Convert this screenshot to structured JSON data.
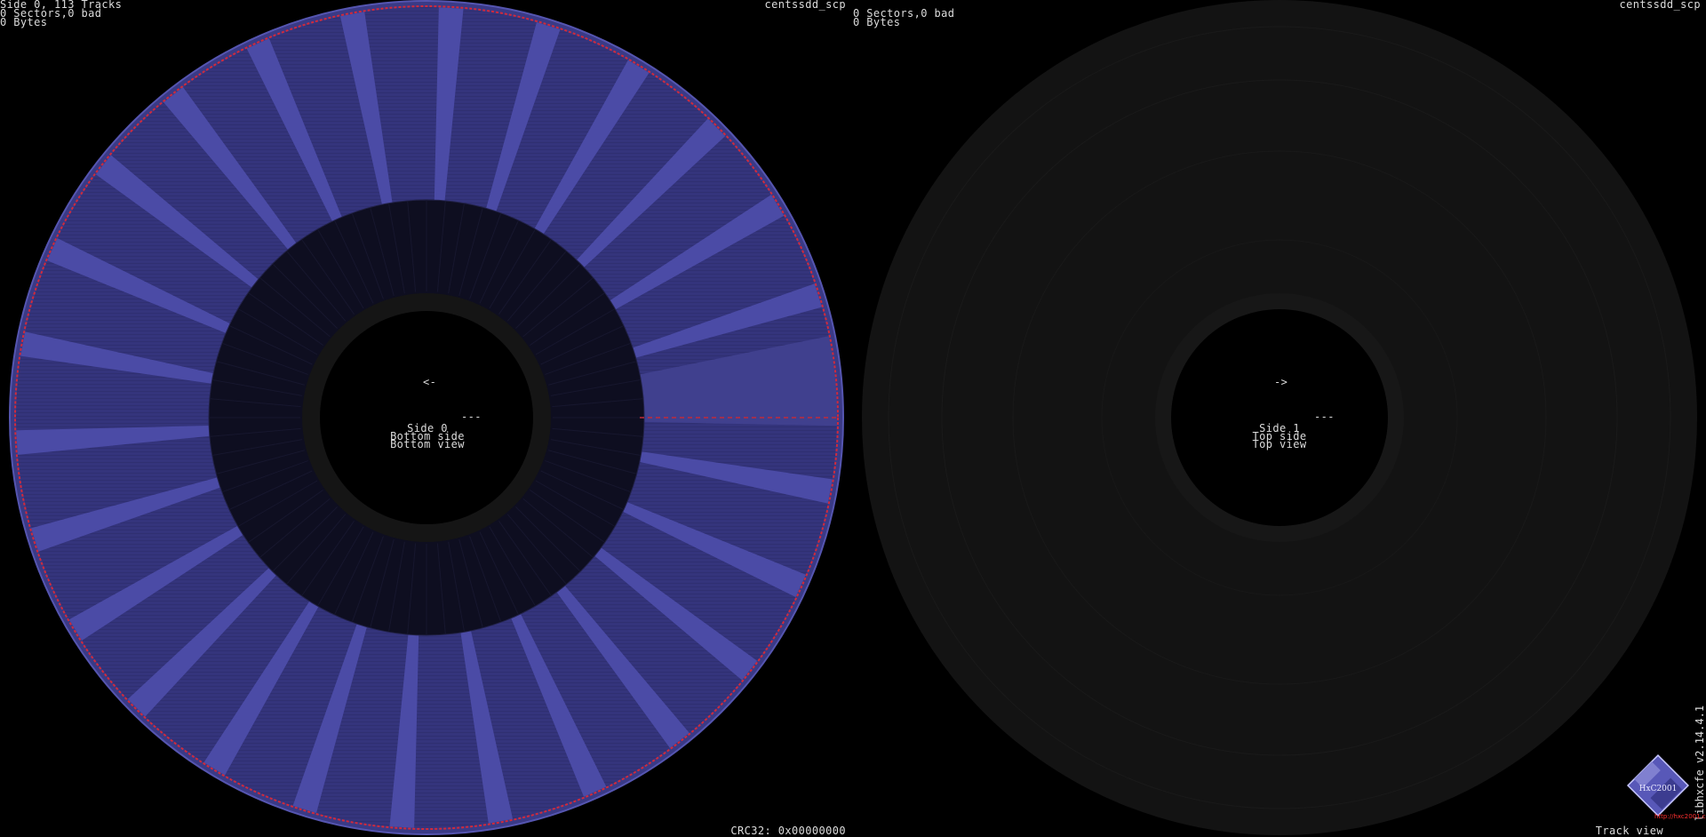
{
  "left_panel": {
    "info_line1": "Side 0, 113 Tracks",
    "info_line2": "0 Sectors,0 bad",
    "info_line3": "0 Bytes",
    "filename": "centssdd_scp",
    "arrow": "<-",
    "dash": "---",
    "side_label": "Side 0",
    "side_name": "Bottom side",
    "view_name": "Bottom view",
    "crc": "CRC32: 0x00000000",
    "colors": {
      "track": "#3a3a88",
      "sector": "#4a4aa0",
      "ring": "#0f0f22",
      "edge": "#e0303a"
    }
  },
  "right_panel": {
    "info_line2": "0 Sectors,0 bad",
    "info_line3": "0 Bytes",
    "filename": "centssdd_scp",
    "arrow": "->",
    "dash": "---",
    "side_label": "Side 1",
    "side_name": "Top side",
    "view_name": "Top view",
    "mode": "Track view",
    "colors": {
      "disc": "#141414"
    }
  },
  "footer": {
    "version": "libhxcfe v2.14.4.1",
    "url": "http://hxc2001.com",
    "logo_icon": "floppy-disk-icon"
  }
}
